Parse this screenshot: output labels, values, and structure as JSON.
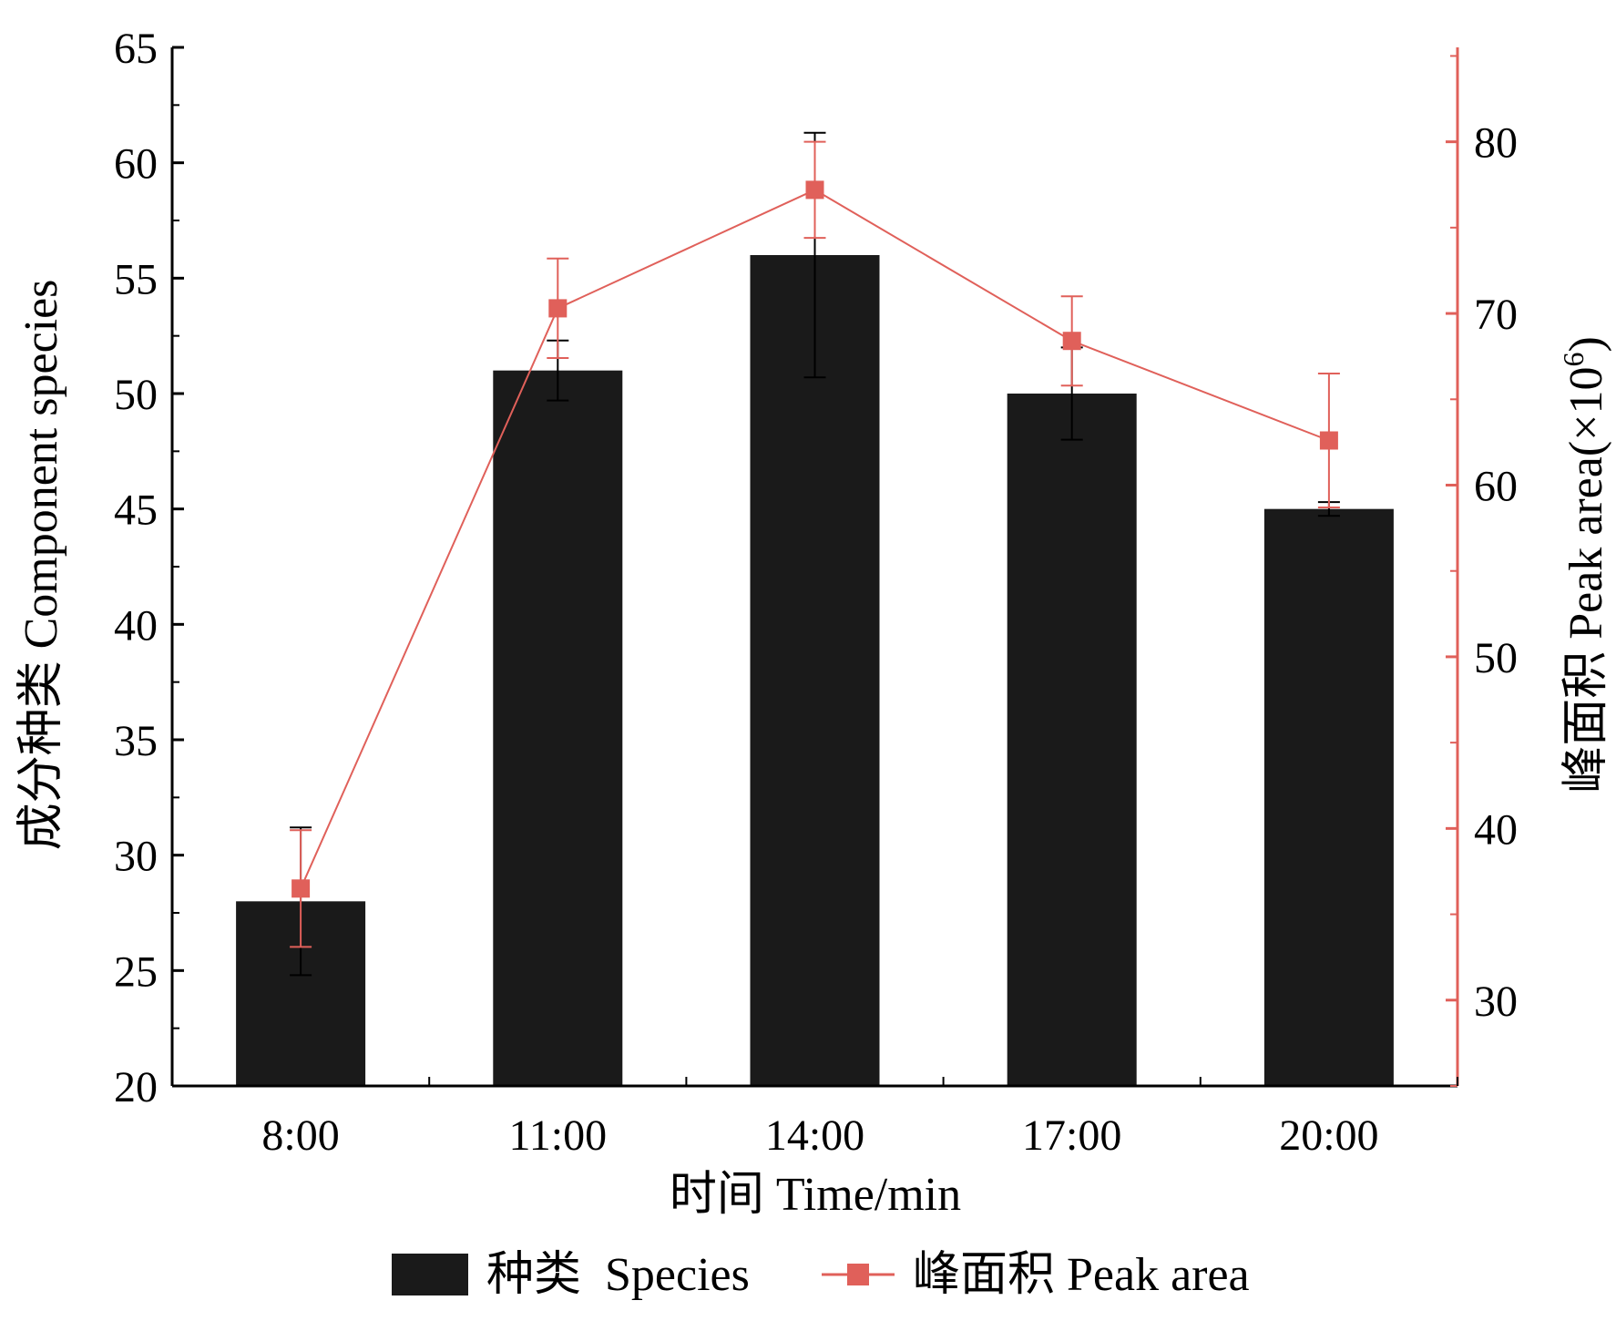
{
  "chart_data": {
    "type": "bar",
    "categories": [
      "8:00",
      "11:00",
      "14:00",
      "17:00",
      "20:00"
    ],
    "xlabel": "时间 Time/min",
    "ylabel": "成分种类  Component species",
    "y2label_main": "峰面积 Peak area(×10",
    "y2label_sup": "6",
    "y2label_close": ")",
    "ylim": [
      20,
      65
    ],
    "y2lim": [
      25,
      85.5
    ],
    "yticks": [
      "20",
      "25",
      "30",
      "35",
      "40",
      "45",
      "50",
      "55",
      "60",
      "65"
    ],
    "y2ticks": [
      "30",
      "40",
      "50",
      "60",
      "70",
      "80"
    ],
    "series": [
      {
        "name": "种类  Species",
        "type": "bar",
        "axis": "left",
        "color": "#1a1a1a",
        "values": [
          28,
          51,
          56,
          50,
          45
        ],
        "errors": [
          3.2,
          1.3,
          5.3,
          2.0,
          0.3
        ]
      },
      {
        "name": "峰面积 Peak area",
        "type": "line",
        "axis": "right",
        "color": "#e0605a",
        "values": [
          36.5,
          70.3,
          77.2,
          68.4,
          62.6
        ],
        "errors": [
          3.4,
          2.9,
          2.8,
          2.6,
          3.9
        ]
      }
    ],
    "legend": "bottom",
    "grid": false
  }
}
